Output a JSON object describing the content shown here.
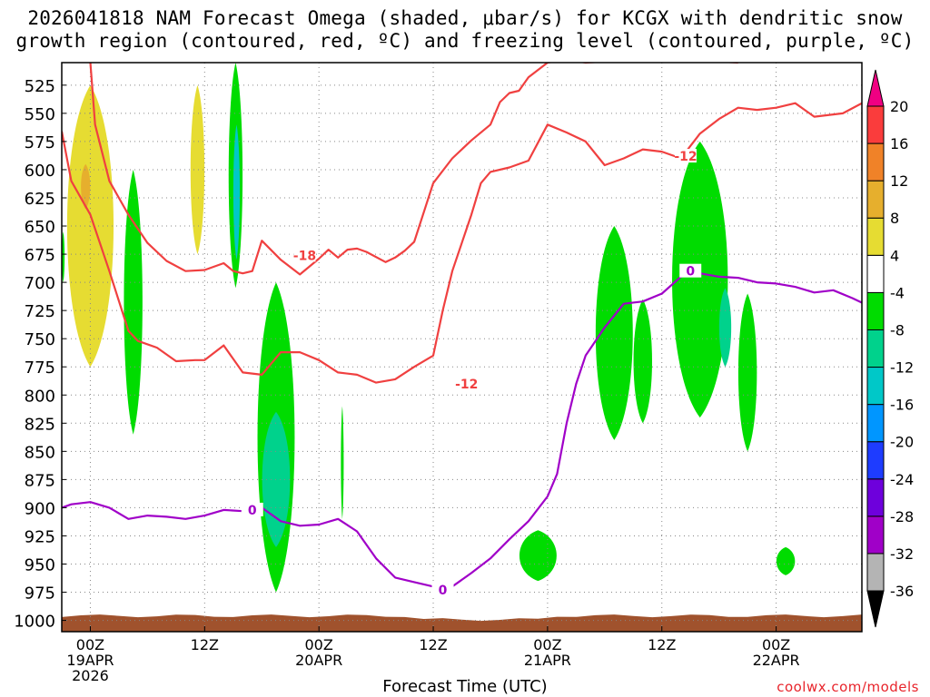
{
  "title_lines": [
    "2026041818 NAM Forecast Omega (shaded, μbar/s) for KCGX with dendritic snow",
    "growth region (contoured, red, ºC) and freezing level (contoured, purple, ºC)"
  ],
  "credit": "coolwx.com/models",
  "chart_data": {
    "type": "heatmap",
    "title": "2026041818 NAM Forecast Omega (shaded, μbar/s) for KCGX with dendritic snow growth region (contoured, red, ºC) and freezing level (contoured, purple, ºC)",
    "xlabel": "Forecast Time (UTC)",
    "ylabel": "",
    "x_axis": {
      "unit": "forecast hour from 2026041818",
      "range": [
        3,
        87
      ],
      "ticks": [
        {
          "hour": 6,
          "labels": [
            "00Z",
            "19APR",
            "2026"
          ]
        },
        {
          "hour": 18,
          "labels": [
            "12Z"
          ]
        },
        {
          "hour": 30,
          "labels": [
            "00Z",
            "20APR"
          ]
        },
        {
          "hour": 42,
          "labels": [
            "12Z"
          ]
        },
        {
          "hour": 54,
          "labels": [
            "00Z",
            "21APR"
          ]
        },
        {
          "hour": 66,
          "labels": [
            "12Z"
          ]
        },
        {
          "hour": 78,
          "labels": [
            "00Z",
            "22APR"
          ]
        }
      ]
    },
    "y_axis": {
      "unit": "hPa",
      "range": [
        1010,
        505
      ],
      "ticks": [
        525,
        550,
        575,
        600,
        625,
        650,
        675,
        700,
        725,
        750,
        775,
        800,
        825,
        850,
        875,
        900,
        925,
        950,
        975,
        1000
      ]
    },
    "grid": true,
    "colorbar": {
      "levels": [
        -36,
        -32,
        -28,
        -24,
        -20,
        -16,
        -12,
        -8,
        -4,
        4,
        8,
        12,
        16,
        20
      ],
      "colors": [
        "#000000",
        "#b4b4b4",
        "#a000c8",
        "#6e00dc",
        "#1e3cff",
        "#0096ff",
        "#00c8c8",
        "#00d28c",
        "#00dc00",
        "#ffffff",
        "#e6dc32",
        "#e6af2d",
        "#f08228",
        "#fa3c3c",
        "#f00082"
      ]
    },
    "omega_regions": [
      {
        "name": "rising",
        "color": "#e6dc32",
        "hours": [
          3.5,
          8.5
        ],
        "pressure": [
          525,
          775
        ],
        "centre_hour": 5.5
      },
      {
        "name": "rising-core",
        "color": "#e6af2d",
        "hours": [
          5,
          6
        ],
        "pressure": [
          595,
          635
        ]
      },
      {
        "name": "rising",
        "color": "#e6dc32",
        "hours": [
          16.5,
          18
        ],
        "pressure": [
          525,
          675
        ]
      },
      {
        "name": "sinking",
        "color": "#00dc00",
        "hours": [
          20.5,
          22
        ],
        "pressure": [
          505,
          705
        ]
      },
      {
        "name": "sinking-core",
        "color": "#00c8c8",
        "hours": [
          21,
          21.7
        ],
        "pressure": [
          560,
          680
        ]
      },
      {
        "name": "sinking",
        "color": "#00dc00",
        "hours": [
          9.5,
          11.5
        ],
        "pressure": [
          600,
          835
        ]
      },
      {
        "name": "sinking",
        "color": "#00dc00",
        "hours": [
          23.5,
          27.5
        ],
        "pressure": [
          700,
          975
        ]
      },
      {
        "name": "sinking-core",
        "color": "#00d28c",
        "hours": [
          24,
          27
        ],
        "pressure": [
          815,
          935
        ]
      },
      {
        "name": "sinking",
        "color": "#00dc00",
        "hours": [
          32.3,
          32.6
        ],
        "pressure": [
          810,
          910
        ]
      },
      {
        "name": "sinking",
        "color": "#00dc00",
        "hours": [
          51,
          55
        ],
        "pressure": [
          920,
          965
        ]
      },
      {
        "name": "sinking",
        "color": "#00dc00",
        "hours": [
          59,
          63
        ],
        "pressure": [
          650,
          840
        ]
      },
      {
        "name": "sinking",
        "color": "#00dc00",
        "hours": [
          63,
          65
        ],
        "pressure": [
          715,
          825
        ]
      },
      {
        "name": "sinking",
        "color": "#00dc00",
        "hours": [
          67,
          73
        ],
        "pressure": [
          575,
          820
        ]
      },
      {
        "name": "sinking-core",
        "color": "#00d28c",
        "hours": [
          72,
          73.3
        ],
        "pressure": [
          705,
          775
        ]
      },
      {
        "name": "sinking",
        "color": "#00dc00",
        "hours": [
          74,
          76
        ],
        "pressure": [
          710,
          850
        ]
      },
      {
        "name": "sinking",
        "color": "#00dc00",
        "hours": [
          78,
          80
        ],
        "pressure": [
          935,
          960
        ]
      },
      {
        "name": "sinking",
        "color": "#00dc00",
        "hours": [
          3,
          3.3
        ],
        "pressure": [
          655,
          700
        ]
      }
    ],
    "series": [
      {
        "name": "-12",
        "color": "#f04040",
        "labels": [
          {
            "hour": 45.5,
            "pressure": 790,
            "text": "-12"
          },
          {
            "hour": 68.5,
            "pressure": 588,
            "text": "-12"
          }
        ],
        "points": [
          [
            3,
            566
          ],
          [
            4,
            610
          ],
          [
            6,
            640
          ],
          [
            8,
            690
          ],
          [
            10,
            743
          ],
          [
            11,
            752
          ],
          [
            13,
            758
          ],
          [
            15,
            770
          ],
          [
            17,
            769
          ],
          [
            18,
            769
          ],
          [
            20,
            756
          ],
          [
            22,
            780
          ],
          [
            24,
            782
          ],
          [
            26,
            762
          ],
          [
            28,
            762
          ],
          [
            30,
            769
          ],
          [
            32,
            780
          ],
          [
            34,
            782
          ],
          [
            36,
            789
          ],
          [
            38,
            786
          ],
          [
            40,
            775
          ],
          [
            42,
            765
          ],
          [
            43,
            725
          ],
          [
            44,
            690
          ],
          [
            45,
            665
          ],
          [
            46,
            640
          ],
          [
            47,
            612
          ],
          [
            48,
            602
          ],
          [
            50,
            598
          ],
          [
            52,
            592
          ],
          [
            54,
            560
          ],
          [
            56,
            567
          ],
          [
            58,
            575
          ],
          [
            60,
            596
          ],
          [
            62,
            590
          ],
          [
            64,
            582
          ],
          [
            66,
            584
          ],
          [
            68,
            590
          ],
          [
            70,
            568
          ],
          [
            72,
            555
          ],
          [
            74,
            545
          ],
          [
            76,
            547
          ],
          [
            78,
            545
          ],
          [
            80,
            541
          ],
          [
            82,
            553
          ],
          [
            84,
            551
          ],
          [
            85,
            550
          ],
          [
            87,
            541
          ]
        ]
      },
      {
        "name": "-18",
        "color": "#f04040",
        "labels": [
          {
            "hour": 28.5,
            "pressure": 676,
            "text": "-18"
          }
        ],
        "points": [
          [
            6,
            505
          ],
          [
            6.5,
            560
          ],
          [
            8,
            610
          ],
          [
            9,
            625
          ],
          [
            10,
            640
          ],
          [
            12,
            665
          ],
          [
            14,
            681
          ],
          [
            16,
            690
          ],
          [
            18,
            689
          ],
          [
            20,
            683
          ],
          [
            21,
            690
          ],
          [
            22,
            692
          ],
          [
            23,
            690
          ],
          [
            24,
            663
          ],
          [
            26,
            680
          ],
          [
            28,
            693
          ],
          [
            30,
            679
          ],
          [
            31,
            671
          ],
          [
            32,
            678
          ],
          [
            33,
            671
          ],
          [
            34,
            670
          ],
          [
            35,
            673
          ],
          [
            37,
            682
          ],
          [
            38,
            678
          ],
          [
            39,
            672
          ],
          [
            40,
            664
          ],
          [
            42,
            612
          ],
          [
            44,
            590
          ],
          [
            46,
            574
          ],
          [
            48,
            560
          ],
          [
            49,
            540
          ],
          [
            50,
            532
          ],
          [
            51,
            530
          ],
          [
            52,
            518
          ],
          [
            54,
            505
          ],
          [
            56,
            502
          ],
          [
            58,
            505
          ],
          [
            62,
            503
          ],
          [
            66,
            500
          ],
          [
            70,
            503
          ],
          [
            74,
            505
          ]
        ]
      },
      {
        "name": "0",
        "color": "#a000c8",
        "labels": [
          {
            "hour": 23,
            "pressure": 902,
            "text": "0"
          },
          {
            "hour": 43,
            "pressure": 973,
            "text": "0"
          },
          {
            "hour": 69,
            "pressure": 690,
            "text": "0"
          }
        ],
        "points": [
          [
            3,
            900
          ],
          [
            4,
            897
          ],
          [
            6,
            895
          ],
          [
            8,
            900
          ],
          [
            10,
            910
          ],
          [
            12,
            907
          ],
          [
            14,
            908
          ],
          [
            16,
            910
          ],
          [
            18,
            907
          ],
          [
            20,
            902
          ],
          [
            22,
            903
          ],
          [
            24,
            900
          ],
          [
            26,
            912
          ],
          [
            28,
            916
          ],
          [
            30,
            915
          ],
          [
            32,
            910
          ],
          [
            34,
            921
          ],
          [
            36,
            945
          ],
          [
            38,
            962
          ],
          [
            40,
            966
          ],
          [
            42,
            970
          ],
          [
            44,
            970
          ],
          [
            46,
            958
          ],
          [
            48,
            945
          ],
          [
            50,
            928
          ],
          [
            52,
            912
          ],
          [
            54,
            890
          ],
          [
            55,
            870
          ],
          [
            56,
            825
          ],
          [
            57,
            790
          ],
          [
            58,
            765
          ],
          [
            60,
            740
          ],
          [
            62,
            719
          ],
          [
            64,
            717
          ],
          [
            66,
            710
          ],
          [
            68,
            695
          ],
          [
            70,
            692
          ],
          [
            72,
            695
          ],
          [
            74,
            696
          ],
          [
            76,
            700
          ],
          [
            78,
            701
          ],
          [
            80,
            704
          ],
          [
            82,
            709
          ],
          [
            84,
            707
          ],
          [
            86,
            714
          ],
          [
            87,
            718
          ]
        ]
      }
    ]
  }
}
